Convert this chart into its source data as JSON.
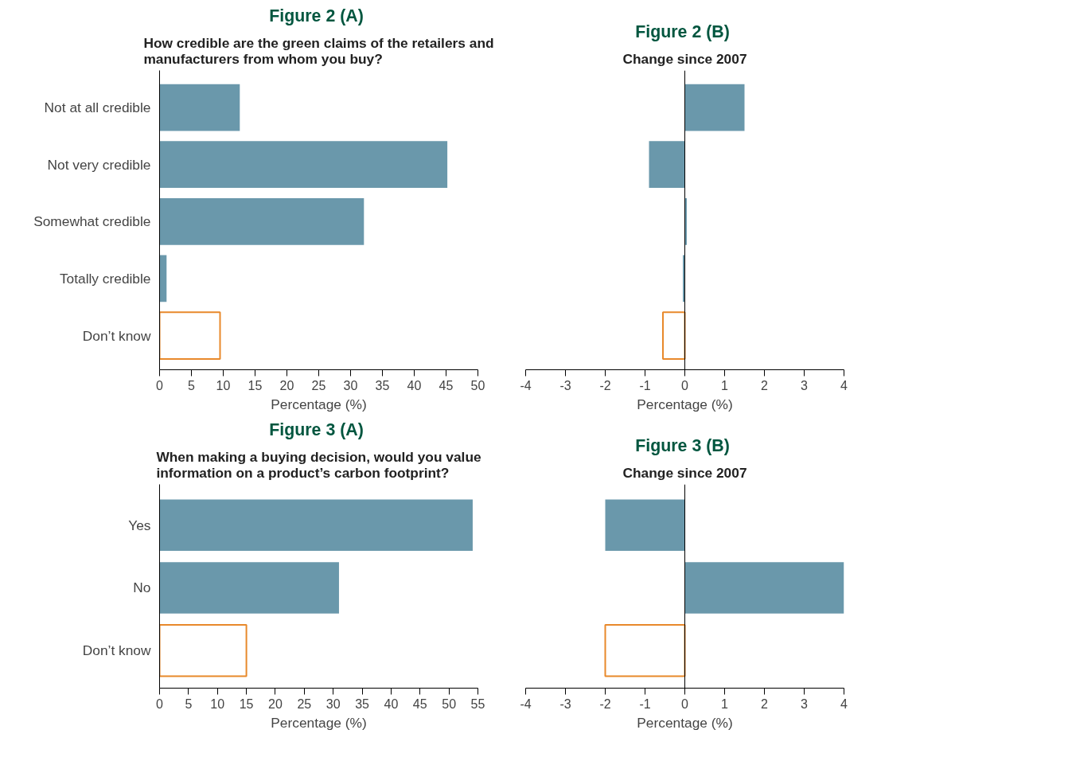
{
  "chart_data": [
    {
      "type": "bar",
      "orientation": "horizontal",
      "title": "Figure 2  (A)",
      "subtitle": "How credible are the green claims of the retailers and manufacturers from whom you buy?",
      "xlabel": "Percentage (%)",
      "categories": [
        "Not at all credible",
        "Not very credible",
        "Somewhat credible",
        "Totally credible",
        "Don’t know"
      ],
      "series": [
        {
          "color": "#6a98ab",
          "colors": [
            "#6a98ab",
            "#6a98ab",
            "#6a98ab",
            "#6a98ab",
            "#e8892b"
          ],
          "values": [
            12.6,
            45.2,
            32.1,
            1.1,
            9.5
          ]
        }
      ],
      "xlim": [
        0,
        50
      ],
      "xticks": [
        0,
        5,
        10,
        15,
        20,
        25,
        30,
        35,
        40,
        45,
        50
      ],
      "grid": false
    },
    {
      "type": "bar",
      "orientation": "horizontal",
      "title": "Figure 2  (B)",
      "subtitle": "Change since 2007",
      "xlabel": "Percentage (%)",
      "categories": [
        "Not at all credible",
        "Not very credible",
        "Somewhat credible",
        "Totally credible",
        "Don’t know"
      ],
      "series": [
        {
          "color": "#6a98ab",
          "colors": [
            "#6a98ab",
            "#6a98ab",
            "#6a98ab",
            "#6a98ab",
            "#e8892b"
          ],
          "values": [
            1.5,
            -0.9,
            0.05,
            -0.05,
            -0.55
          ]
        }
      ],
      "xlim": [
        -4,
        4
      ],
      "xticks": [
        -4,
        -3,
        -2,
        -1,
        0,
        1,
        2,
        3,
        4
      ],
      "tick_labels": "x",
      "grid": false,
      "ref_lines": [
        {
          "axis": "x",
          "value": 0,
          "color": "#000000"
        }
      ]
    },
    {
      "type": "bar",
      "orientation": "horizontal",
      "title": "Figure 3  (A)",
      "subtitle": "When making a buying decision, would you value information on a product’s carbon footprint?",
      "xlabel": "Percentage (%)",
      "categories": [
        "Yes",
        "No",
        "Don’t know"
      ],
      "series": [
        {
          "color": "#6a98ab",
          "colors": [
            "#6a98ab",
            "#6a98ab",
            "#e8892b"
          ],
          "values": [
            54.1,
            31.0,
            15.0
          ]
        }
      ],
      "xlim": [
        0,
        55
      ],
      "xticks": [
        0,
        5,
        10,
        15,
        20,
        25,
        30,
        35,
        40,
        45,
        50,
        55
      ],
      "grid": false
    },
    {
      "type": "bar",
      "orientation": "horizontal",
      "title": "Figure 3  (B)",
      "subtitle": "Change since 2007",
      "xlabel": "Percentage (%)",
      "categories": [
        "Yes",
        "No",
        "Don’t know"
      ],
      "series": [
        {
          "color": "#6a98ab",
          "colors": [
            "#6a98ab",
            "#6a98ab",
            "#e8892b"
          ],
          "values": [
            -2.0,
            4.0,
            -2.0
          ]
        }
      ],
      "xlim": [
        -4,
        4
      ],
      "xticks": [
        -4,
        -3,
        -2,
        -1,
        0,
        1,
        2,
        3,
        4
      ],
      "tick_labels": "x",
      "grid": false,
      "ref_lines": [
        {
          "axis": "x",
          "value": 0,
          "color": "#000000"
        }
      ]
    }
  ]
}
